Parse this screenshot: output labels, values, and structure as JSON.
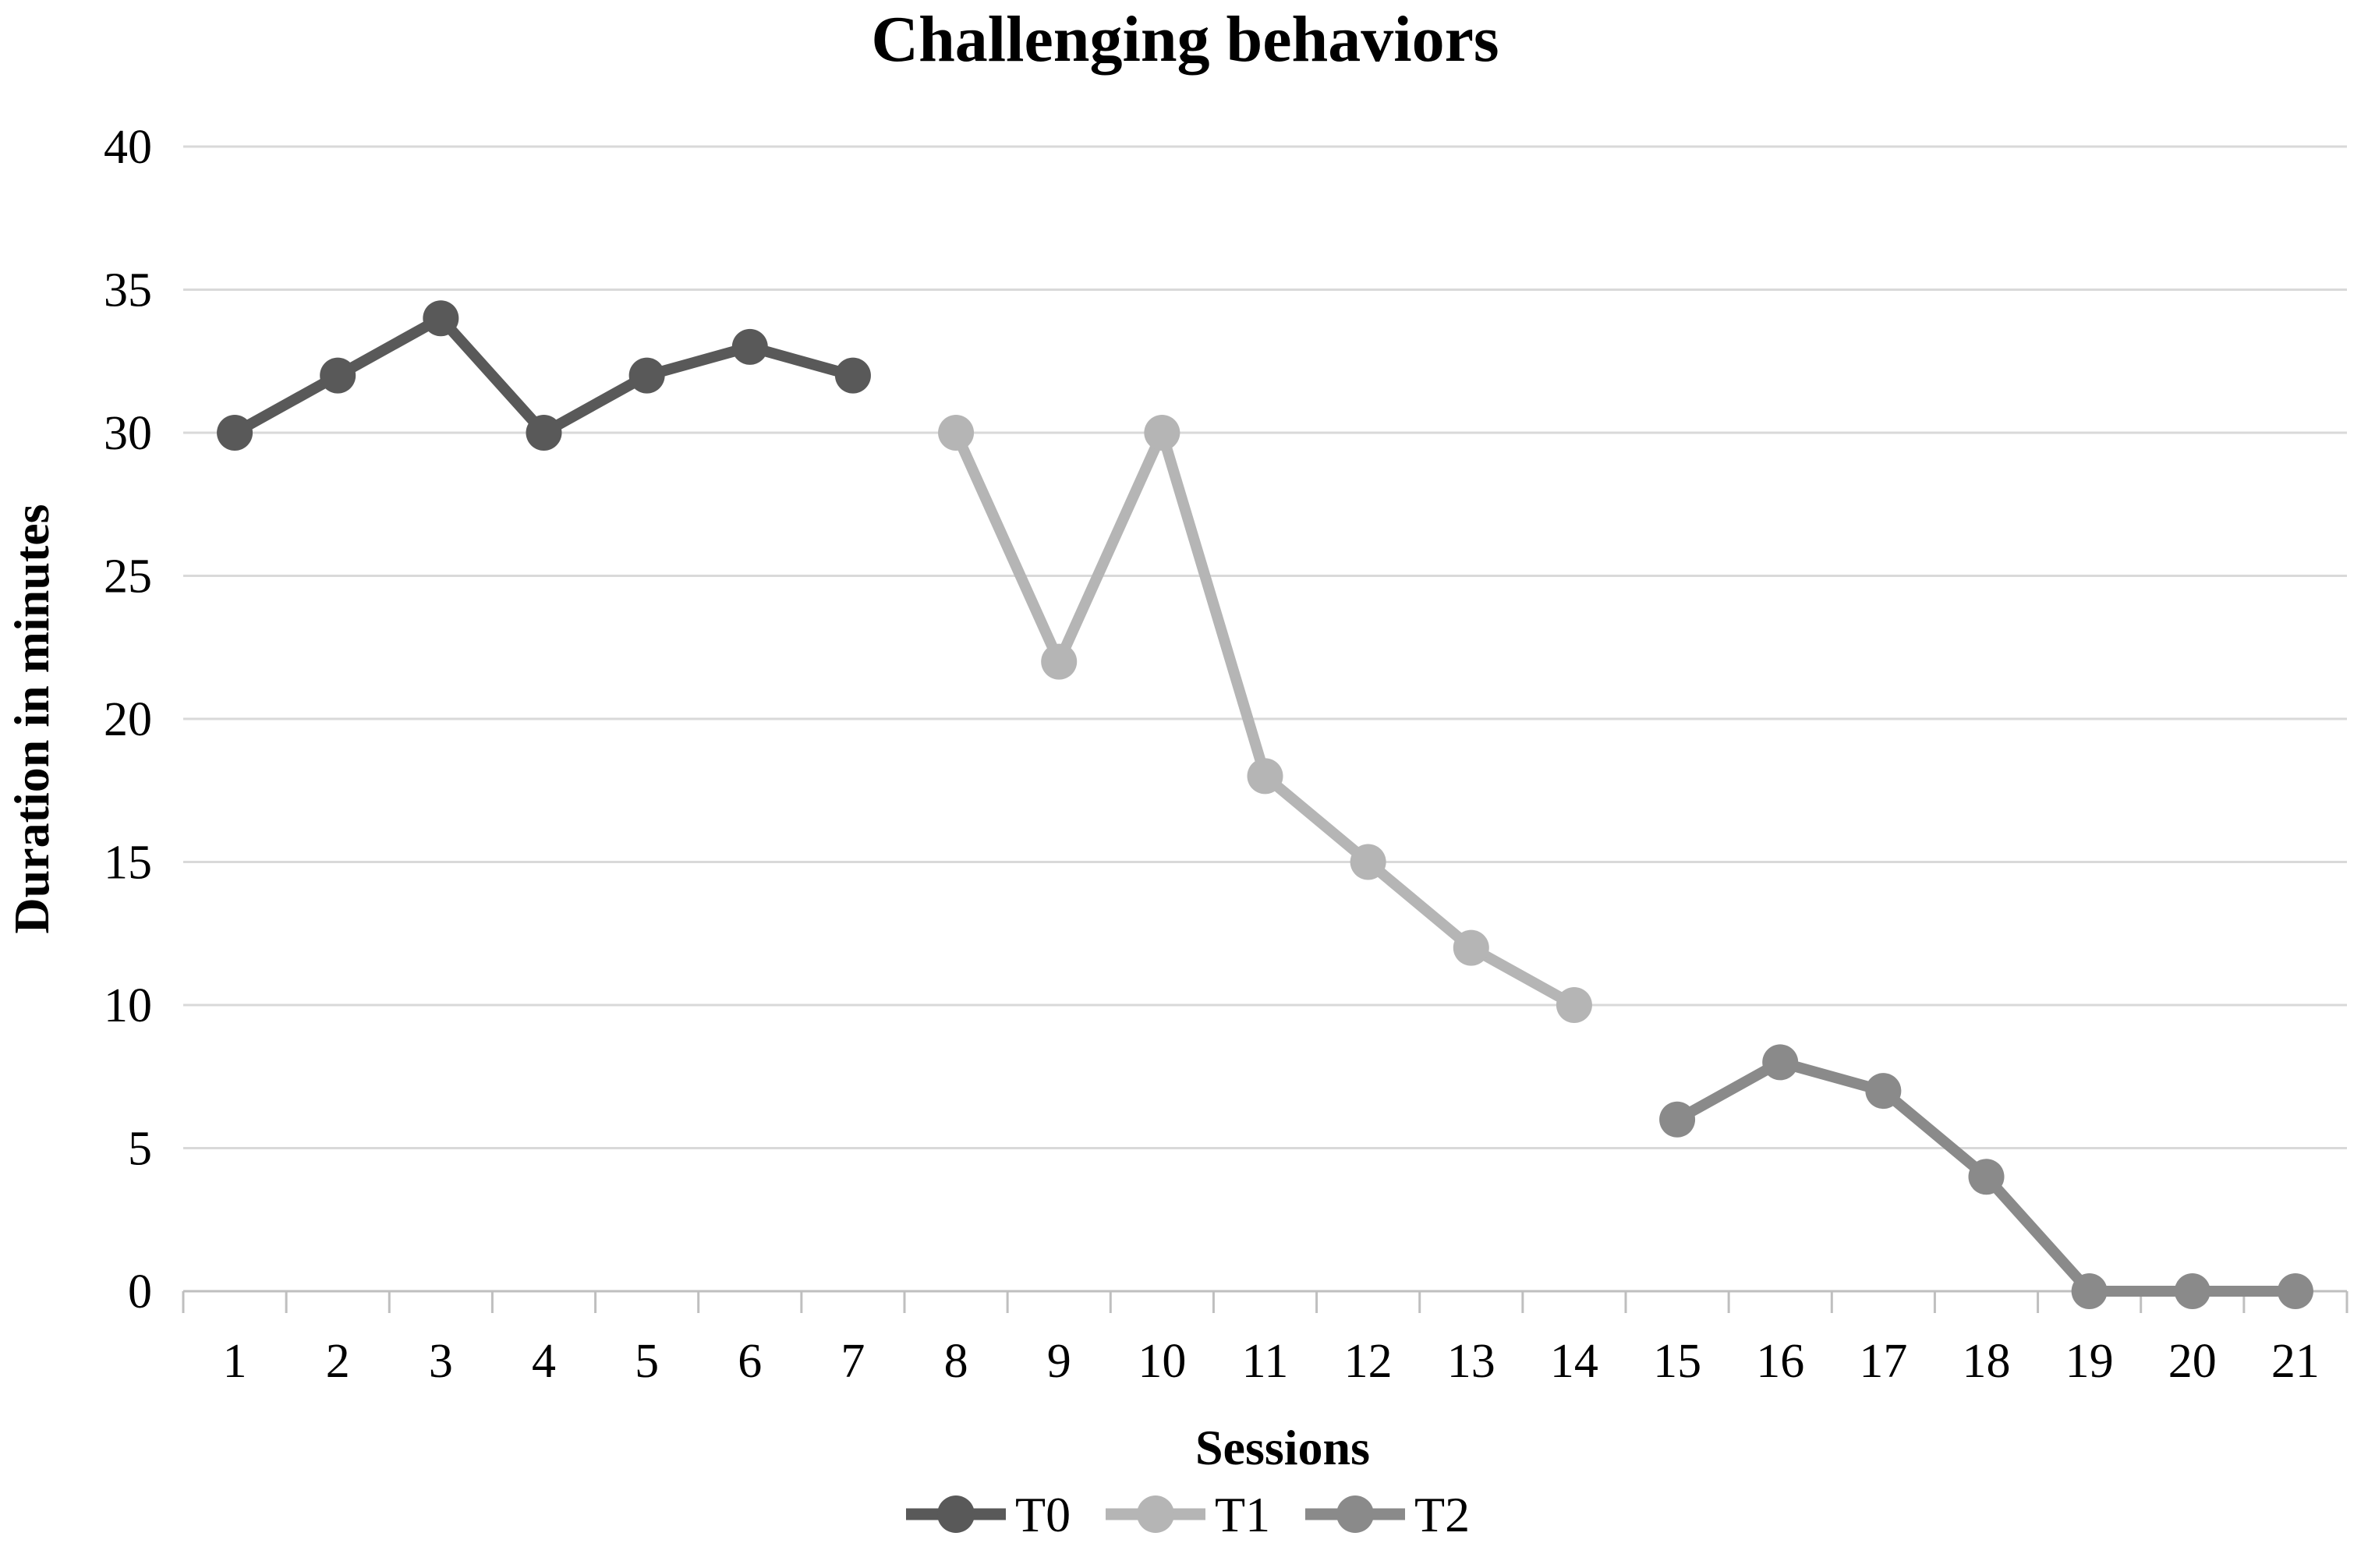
{
  "chart_data": {
    "type": "line",
    "title": "Challenging behaviors",
    "xlabel": "Sessions",
    "ylabel": "Duration in minutes",
    "categories": [
      1,
      2,
      3,
      4,
      5,
      6,
      7,
      8,
      9,
      10,
      11,
      12,
      13,
      14,
      15,
      16,
      17,
      18,
      19,
      20,
      21
    ],
    "ylim": [
      0,
      40
    ],
    "ytick_step": 5,
    "ytick_labels": [
      "0",
      "5",
      "10",
      "15",
      "20",
      "25",
      "30",
      "35",
      "40"
    ],
    "grid": true,
    "legend_position": "bottom",
    "series": [
      {
        "name": "T0",
        "color": "#595959",
        "x": [
          1,
          2,
          3,
          4,
          5,
          6,
          7
        ],
        "values": [
          30,
          32,
          34,
          30,
          32,
          33,
          32
        ]
      },
      {
        "name": "T1",
        "color": "#b5b5b5",
        "x": [
          8,
          9,
          10,
          11,
          12,
          13,
          14
        ],
        "values": [
          30,
          22,
          30,
          18,
          15,
          12,
          10
        ]
      },
      {
        "name": "T2",
        "color": "#8a8a8a",
        "x": [
          15,
          16,
          17,
          18,
          19,
          20,
          21
        ],
        "values": [
          6,
          8,
          7,
          4,
          0,
          0,
          0
        ]
      }
    ],
    "colors": {
      "grid": "#d9d9d9",
      "axis": "#bfbfbf",
      "text": "#000000",
      "background": "#ffffff"
    }
  }
}
